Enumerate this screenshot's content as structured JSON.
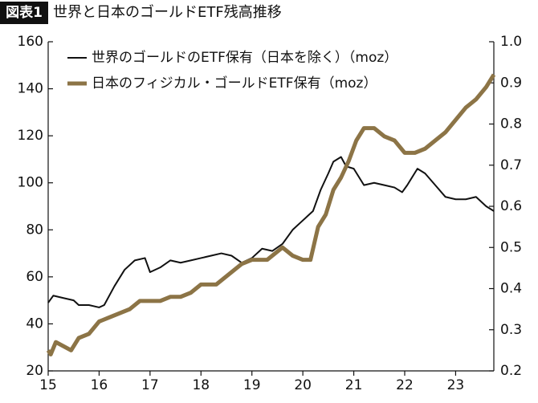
{
  "chart_data": {
    "type": "line",
    "label": "図表1",
    "title": "世界と日本のゴールドETF残高推移",
    "xlim": [
      15,
      23.75
    ],
    "xticks": [
      15,
      16,
      17,
      18,
      19,
      20,
      21,
      22,
      23
    ],
    "ylim": [
      20,
      160
    ],
    "yticks": [
      20,
      40,
      60,
      80,
      100,
      120,
      140,
      160
    ],
    "y2lim": [
      0.2,
      1.0
    ],
    "y2ticks": [
      {
        "value": 0.2,
        "label": "0.2"
      },
      {
        "value": 0.3,
        "label": "0.3"
      },
      {
        "value": 0.4,
        "label": "0.4"
      },
      {
        "value": 0.5,
        "label": "0.5"
      },
      {
        "value": 0.6,
        "label": "0.6"
      },
      {
        "value": 0.7,
        "label": "0.7"
      },
      {
        "value": 0.8,
        "label": "0.8"
      },
      {
        "value": 0.9,
        "label": "0.9"
      },
      {
        "value": 1.0,
        "label": "1.0"
      }
    ],
    "legend": "top-left",
    "series": [
      {
        "name": "世界のゴールドのETF保有（日本を除く）（moz）",
        "color": "#111111",
        "axis": "y",
        "x": [
          15.0,
          15.1,
          15.3,
          15.5,
          15.6,
          15.8,
          16.0,
          16.1,
          16.3,
          16.5,
          16.7,
          16.9,
          17.0,
          17.2,
          17.4,
          17.6,
          17.8,
          18.0,
          18.2,
          18.4,
          18.6,
          18.8,
          19.0,
          19.2,
          19.4,
          19.6,
          19.8,
          20.0,
          20.2,
          20.35,
          20.5,
          20.6,
          20.75,
          20.85,
          21.0,
          21.2,
          21.4,
          21.6,
          21.8,
          21.95,
          22.05,
          22.25,
          22.4,
          22.6,
          22.8,
          23.0,
          23.2,
          23.4,
          23.6,
          23.75
        ],
        "values": [
          49,
          52,
          51,
          50,
          48,
          48,
          47,
          48,
          56,
          63,
          67,
          68,
          62,
          64,
          67,
          66,
          67,
          68,
          69,
          70,
          69,
          66,
          68,
          72,
          71,
          74,
          80,
          84,
          88,
          97,
          104,
          109,
          111,
          107,
          106,
          99,
          100,
          99,
          98,
          96,
          99,
          106,
          104,
          99,
          94,
          93,
          93,
          94,
          90,
          88
        ]
      },
      {
        "name": "日本のフィジカル・ゴールドETF保有（moz）",
        "color": "#8c7446",
        "axis": "y2",
        "x": [
          15.0,
          15.05,
          15.15,
          15.3,
          15.45,
          15.6,
          15.8,
          16.0,
          16.2,
          16.4,
          16.6,
          16.8,
          17.0,
          17.2,
          17.4,
          17.6,
          17.8,
          18.0,
          18.3,
          18.6,
          18.8,
          19.0,
          19.3,
          19.6,
          19.8,
          20.0,
          20.15,
          20.3,
          20.45,
          20.6,
          20.75,
          20.9,
          21.05,
          21.2,
          21.4,
          21.6,
          21.8,
          22.0,
          22.2,
          22.4,
          22.6,
          22.8,
          23.0,
          23.2,
          23.4,
          23.6,
          23.75
        ],
        "values": [
          0.25,
          0.24,
          0.27,
          0.26,
          0.25,
          0.28,
          0.29,
          0.32,
          0.33,
          0.34,
          0.35,
          0.37,
          0.37,
          0.37,
          0.38,
          0.38,
          0.39,
          0.41,
          0.41,
          0.44,
          0.46,
          0.47,
          0.47,
          0.5,
          0.48,
          0.47,
          0.47,
          0.55,
          0.58,
          0.64,
          0.67,
          0.71,
          0.76,
          0.79,
          0.79,
          0.77,
          0.76,
          0.73,
          0.73,
          0.74,
          0.76,
          0.78,
          0.81,
          0.84,
          0.86,
          0.89,
          0.92
        ]
      }
    ]
  }
}
